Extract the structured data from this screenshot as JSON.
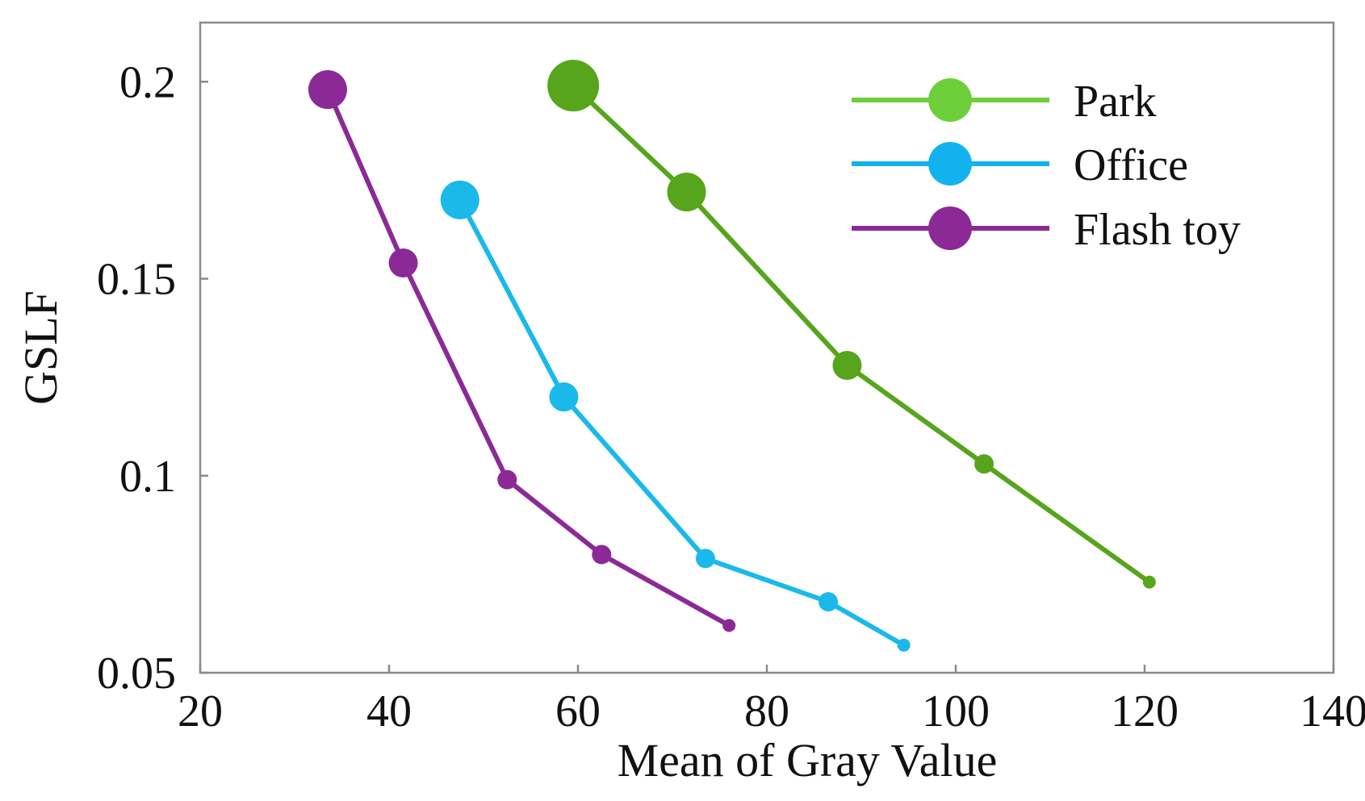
{
  "chart_data": {
    "type": "line",
    "title": "",
    "xlabel": "Mean of Gray Value",
    "ylabel": "GSLF",
    "xlim": [
      20,
      140
    ],
    "ylim": [
      0.05,
      0.215
    ],
    "xticks": [
      20,
      40,
      60,
      80,
      100,
      120,
      140
    ],
    "xtick_labels": [
      "20",
      "40",
      "60",
      "80",
      "100",
      "120",
      "140"
    ],
    "yticks": [
      0.05,
      0.1,
      0.15,
      0.2
    ],
    "ytick_labels": [
      "0.05",
      "0.1",
      "0.15",
      "0.2"
    ],
    "grid": false,
    "legend_position": "top-right",
    "series": [
      {
        "name": "Park",
        "color": "#56a51c",
        "legend_color": "#6dcf3a",
        "x": [
          59.5,
          71.5,
          88.5,
          103,
          120.5
        ],
        "y": [
          0.199,
          0.172,
          0.128,
          0.103,
          0.073
        ],
        "marker_sizes": [
          5,
          4,
          3,
          2,
          1
        ]
      },
      {
        "name": "Office",
        "color": "#1bb9ea",
        "legend_color": "#12b2ef",
        "x": [
          47.5,
          58.5,
          73.5,
          86.5,
          94.5
        ],
        "y": [
          0.17,
          0.12,
          0.079,
          0.068,
          0.057
        ],
        "marker_sizes": [
          4,
          3,
          2,
          2,
          1
        ]
      },
      {
        "name": "Flash toy",
        "color": "#8b2a97",
        "legend_color": "#8b2a97",
        "x": [
          33.5,
          41.5,
          52.5,
          62.5,
          76
        ],
        "y": [
          0.198,
          0.154,
          0.099,
          0.08,
          0.062
        ],
        "marker_sizes": [
          4,
          3,
          2,
          2,
          1
        ]
      }
    ]
  }
}
